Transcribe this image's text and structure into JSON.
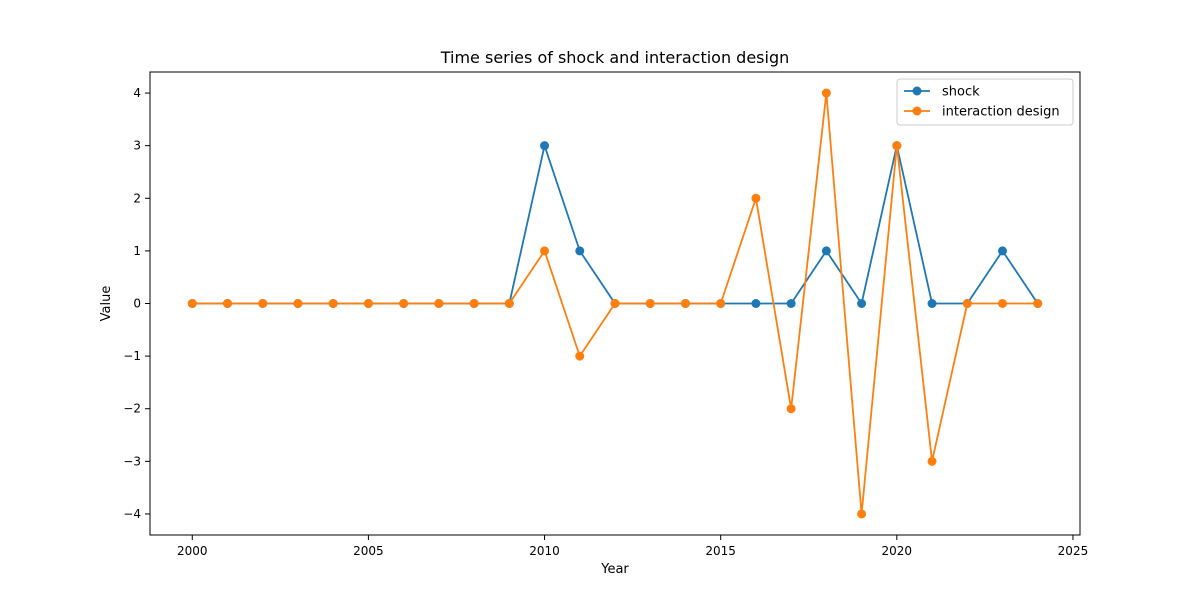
{
  "chart_data": {
    "type": "line",
    "title": "Time series of shock and interaction design",
    "xlabel": "Year",
    "ylabel": "Value",
    "xlim": [
      1998.8,
      2025.2
    ],
    "ylim": [
      -4.4,
      4.4
    ],
    "xticks": [
      2000,
      2005,
      2010,
      2015,
      2020,
      2025
    ],
    "yticks": [
      -4,
      -3,
      -2,
      -1,
      0,
      1,
      2,
      3,
      4
    ],
    "grid": false,
    "legend_position": "top-right",
    "x": [
      2000,
      2001,
      2002,
      2003,
      2004,
      2005,
      2006,
      2007,
      2008,
      2009,
      2010,
      2011,
      2012,
      2013,
      2014,
      2015,
      2016,
      2017,
      2018,
      2019,
      2020,
      2021,
      2022,
      2023,
      2024
    ],
    "series": [
      {
        "name": "shock",
        "color": "#1f77b4",
        "values": [
          0,
          0,
          0,
          0,
          0,
          0,
          0,
          0,
          0,
          0,
          3,
          1,
          0,
          0,
          0,
          0,
          0,
          0,
          1,
          0,
          3,
          0,
          0,
          1,
          0
        ]
      },
      {
        "name": "interaction design",
        "color": "#ff7f0e",
        "values": [
          0,
          0,
          0,
          0,
          0,
          0,
          0,
          0,
          0,
          0,
          1,
          -1,
          0,
          0,
          0,
          0,
          2,
          -2,
          4,
          -4,
          3,
          -3,
          0,
          0,
          0
        ]
      }
    ]
  }
}
